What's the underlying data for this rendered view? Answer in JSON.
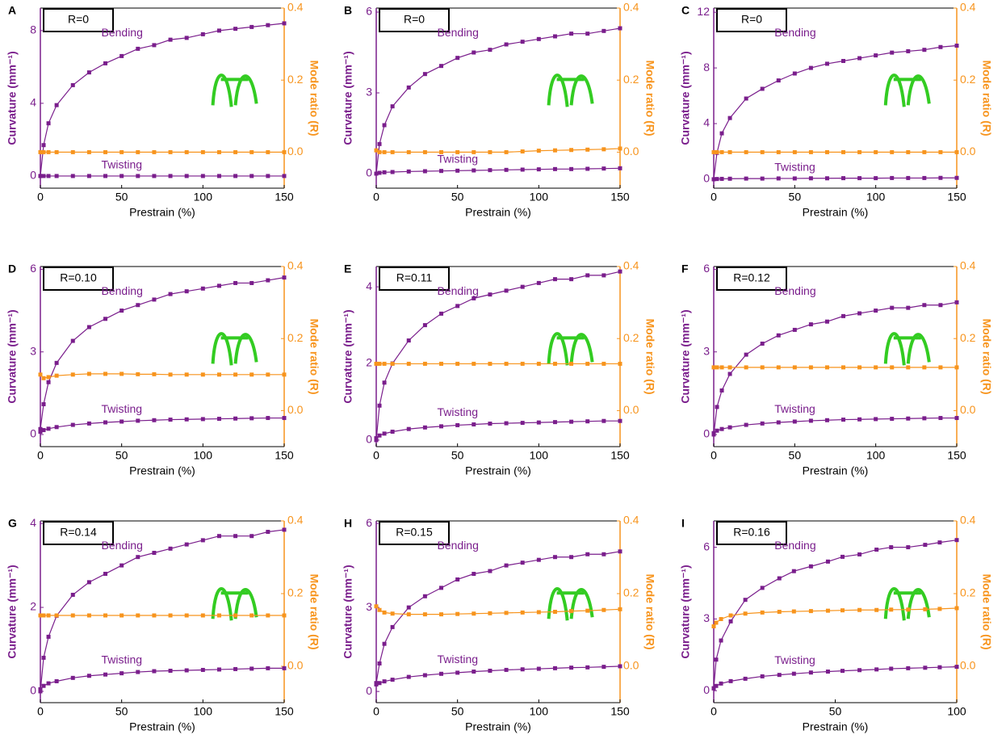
{
  "chart_data": [
    {
      "type": "line",
      "panel": "A",
      "annotation": "R=0",
      "xlabel": "Prestrain (%)",
      "ylabel": "Curvature (mm⁻¹)",
      "y2label": "Mode ratio (R)",
      "x": [
        0,
        2,
        5,
        10,
        20,
        30,
        40,
        50,
        60,
        70,
        80,
        90,
        100,
        110,
        120,
        130,
        140,
        150
      ],
      "xlim": [
        0,
        150
      ],
      "xticks": [
        0,
        50,
        100,
        150
      ],
      "ylim": [
        -0.67,
        9.24
      ],
      "yticks": [
        0,
        4,
        8
      ],
      "y2lim": [
        -0.1,
        0.4
      ],
      "y2ticks": [
        {
          "value": 0,
          "label": "0.0"
        },
        0.2,
        0.4
      ],
      "series": [
        {
          "name": "Bending",
          "color": "#7a1e8c",
          "values": [
            0,
            1.7,
            2.9,
            3.9,
            5.0,
            5.7,
            6.2,
            6.6,
            7.0,
            7.2,
            7.5,
            7.6,
            7.8,
            8.0,
            8.1,
            8.2,
            8.3,
            8.4
          ]
        },
        {
          "name": "Twisting",
          "color": "#7a1e8c",
          "values": [
            0,
            0,
            0,
            0,
            0,
            0,
            0,
            0,
            0,
            0,
            0,
            0,
            0,
            0,
            0,
            0,
            0,
            0
          ]
        },
        {
          "color": "#f7941d",
          "axis": "y2",
          "values": [
            0,
            0,
            0,
            0,
            0,
            0,
            0,
            0,
            0,
            0,
            0,
            0,
            0,
            0,
            0,
            0,
            0,
            0
          ]
        }
      ]
    },
    {
      "type": "line",
      "panel": "B",
      "annotation": "R=0",
      "xlabel": "Prestrain (%)",
      "ylabel": "Curvature (mm⁻¹)",
      "y2label": "Mode ratio (R)",
      "x": [
        0,
        2,
        5,
        10,
        20,
        30,
        40,
        50,
        60,
        70,
        80,
        90,
        100,
        110,
        120,
        130,
        140,
        150
      ],
      "xlim": [
        0,
        150
      ],
      "xticks": [
        0,
        50,
        100,
        150
      ],
      "ylim": [
        -0.54,
        6.15
      ],
      "yticks": [
        0,
        3,
        6
      ],
      "y2lim": [
        -0.1,
        0.4
      ],
      "y2ticks": [
        {
          "value": 0,
          "label": "0.0"
        },
        0.2,
        0.4
      ],
      "series": [
        {
          "name": "Bending",
          "color": "#7a1e8c",
          "values": [
            0,
            1.1,
            1.8,
            2.5,
            3.2,
            3.7,
            4.0,
            4.3,
            4.5,
            4.6,
            4.8,
            4.9,
            5.0,
            5.1,
            5.2,
            5.2,
            5.3,
            5.4
          ]
        },
        {
          "name": "Twisting",
          "color": "#7a1e8c",
          "values": [
            0,
            0.03,
            0.05,
            0.06,
            0.08,
            0.09,
            0.1,
            0.11,
            0.12,
            0.13,
            0.14,
            0.15,
            0.16,
            0.17,
            0.17,
            0.18,
            0.19,
            0.2
          ]
        },
        {
          "color": "#f7941d",
          "axis": "y2",
          "values": [
            0.005,
            0,
            0,
            0,
            0,
            0,
            0,
            0,
            0,
            0,
            0,
            0.002,
            0.004,
            0.005,
            0.006,
            0.007,
            0.008,
            0.01
          ]
        }
      ]
    },
    {
      "type": "line",
      "panel": "C",
      "annotation": "R=0",
      "xlabel": "Prestrain (%)",
      "ylabel": "Curvature (mm⁻¹)",
      "y2label": "Mode ratio (R)",
      "x": [
        0,
        2,
        5,
        10,
        20,
        30,
        40,
        50,
        60,
        70,
        80,
        90,
        100,
        110,
        120,
        130,
        140,
        150
      ],
      "xlim": [
        0,
        150
      ],
      "xticks": [
        0,
        50,
        100,
        150
      ],
      "ylim": [
        -0.64,
        12.3
      ],
      "yticks": [
        0,
        4,
        8,
        12
      ],
      "y2lim": [
        -0.1,
        0.4
      ],
      "y2ticks": [
        {
          "value": 0,
          "label": "0.0"
        },
        0.2,
        0.4
      ],
      "series": [
        {
          "name": "Bending",
          "color": "#7a1e8c",
          "values": [
            0,
            1.9,
            3.3,
            4.4,
            5.8,
            6.5,
            7.1,
            7.6,
            8.0,
            8.3,
            8.5,
            8.7,
            8.9,
            9.1,
            9.2,
            9.3,
            9.5,
            9.6
          ]
        },
        {
          "name": "Twisting",
          "color": "#7a1e8c",
          "values": [
            0,
            0.02,
            0.03,
            0.04,
            0.05,
            0.05,
            0.06,
            0.06,
            0.07,
            0.07,
            0.08,
            0.08,
            0.08,
            0.09,
            0.09,
            0.09,
            0.1,
            0.1
          ]
        },
        {
          "color": "#f7941d",
          "axis": "y2",
          "values": [
            0,
            0,
            0,
            0,
            0,
            0,
            0,
            0,
            0,
            0,
            0,
            0,
            0,
            0,
            0,
            0,
            0,
            0
          ]
        }
      ]
    },
    {
      "type": "line",
      "panel": "D",
      "annotation": "R=0.10",
      "xlabel": "Prestrain (%)",
      "ylabel": "Curvature (mm⁻¹)",
      "y2label": "Mode ratio (R)",
      "x": [
        0,
        2,
        5,
        10,
        20,
        30,
        40,
        50,
        60,
        70,
        80,
        90,
        100,
        110,
        120,
        130,
        140,
        150
      ],
      "xlim": [
        0,
        150
      ],
      "xticks": [
        0,
        50,
        100,
        150
      ],
      "ylim": [
        -0.44,
        6.1
      ],
      "yticks": [
        0,
        3,
        6
      ],
      "y2lim": [
        -0.1,
        0.4
      ],
      "y2ticks": [
        {
          "value": 0,
          "label": "0.0"
        },
        0.2,
        0.4
      ],
      "series": [
        {
          "name": "Bending",
          "color": "#7a1e8c",
          "values": [
            0.2,
            1.1,
            1.9,
            2.6,
            3.4,
            3.9,
            4.2,
            4.5,
            4.7,
            4.9,
            5.1,
            5.2,
            5.3,
            5.4,
            5.5,
            5.5,
            5.6,
            5.7
          ]
        },
        {
          "name": "Twisting",
          "color": "#7a1e8c",
          "values": [
            0.1,
            0.16,
            0.21,
            0.27,
            0.35,
            0.4,
            0.44,
            0.47,
            0.5,
            0.52,
            0.54,
            0.55,
            0.56,
            0.57,
            0.58,
            0.59,
            0.6,
            0.6
          ]
        },
        {
          "color": "#f7941d",
          "axis": "y2",
          "values": [
            0.1,
            0.09,
            0.093,
            0.097,
            0.1,
            0.102,
            0.102,
            0.102,
            0.101,
            0.101,
            0.1,
            0.1,
            0.1,
            0.1,
            0.1,
            0.1,
            0.1,
            0.1
          ]
        }
      ]
    },
    {
      "type": "line",
      "panel": "E",
      "annotation": "R=0.11",
      "xlabel": "Prestrain (%)",
      "ylabel": "Curvature (mm⁻¹)",
      "y2label": "Mode ratio (R)",
      "x": [
        0,
        2,
        5,
        10,
        20,
        30,
        40,
        50,
        60,
        70,
        80,
        90,
        100,
        110,
        120,
        130,
        140,
        150
      ],
      "xlim": [
        0,
        150
      ],
      "xticks": [
        0,
        50,
        100,
        150
      ],
      "ylim": [
        -0.17,
        4.53
      ],
      "yticks": [
        0,
        2,
        4
      ],
      "y2lim": [
        -0.1,
        0.4
      ],
      "y2ticks": [
        {
          "value": 0,
          "label": "0.0"
        },
        0.2,
        0.4
      ],
      "series": [
        {
          "name": "Bending",
          "color": "#7a1e8c",
          "values": [
            0,
            0.9,
            1.5,
            2.0,
            2.6,
            3.0,
            3.3,
            3.5,
            3.7,
            3.8,
            3.9,
            4.0,
            4.1,
            4.2,
            4.2,
            4.3,
            4.3,
            4.4
          ]
        },
        {
          "name": "Twisting",
          "color": "#7a1e8c",
          "values": [
            0.05,
            0.12,
            0.17,
            0.22,
            0.29,
            0.33,
            0.36,
            0.39,
            0.41,
            0.43,
            0.44,
            0.45,
            0.46,
            0.47,
            0.48,
            0.49,
            0.5,
            0.5
          ]
        },
        {
          "color": "#f7941d",
          "axis": "y2",
          "values": [
            0.13,
            0.13,
            0.13,
            0.13,
            0.13,
            0.13,
            0.13,
            0.13,
            0.13,
            0.13,
            0.13,
            0.13,
            0.13,
            0.13,
            0.13,
            0.13,
            0.13,
            0.13
          ]
        }
      ]
    },
    {
      "type": "line",
      "panel": "F",
      "annotation": "R=0.12",
      "xlabel": "Prestrain (%)",
      "ylabel": "Curvature (mm⁻¹)",
      "y2label": "Mode ratio (R)",
      "x": [
        0,
        2,
        5,
        10,
        20,
        30,
        40,
        50,
        60,
        70,
        80,
        90,
        100,
        110,
        120,
        130,
        140,
        150
      ],
      "xlim": [
        0,
        150
      ],
      "xticks": [
        0,
        50,
        100,
        150
      ],
      "ylim": [
        -0.44,
        6.1
      ],
      "yticks": [
        0,
        3,
        6
      ],
      "y2lim": [
        -0.1,
        0.4
      ],
      "y2ticks": [
        {
          "value": 0,
          "label": "0.0"
        },
        0.2,
        0.4
      ],
      "series": [
        {
          "name": "Bending",
          "color": "#7a1e8c",
          "values": [
            0,
            1.0,
            1.6,
            2.2,
            2.9,
            3.3,
            3.6,
            3.8,
            4.0,
            4.1,
            4.3,
            4.4,
            4.5,
            4.6,
            4.6,
            4.7,
            4.7,
            4.8
          ]
        },
        {
          "name": "Twisting",
          "color": "#7a1e8c",
          "values": [
            0.05,
            0.14,
            0.2,
            0.26,
            0.35,
            0.4,
            0.44,
            0.47,
            0.5,
            0.52,
            0.54,
            0.55,
            0.56,
            0.57,
            0.58,
            0.59,
            0.6,
            0.6
          ]
        },
        {
          "color": "#f7941d",
          "axis": "y2",
          "values": [
            0.12,
            0.12,
            0.12,
            0.12,
            0.12,
            0.12,
            0.12,
            0.12,
            0.12,
            0.12,
            0.12,
            0.12,
            0.12,
            0.12,
            0.12,
            0.12,
            0.12,
            0.12
          ]
        }
      ]
    },
    {
      "type": "line",
      "panel": "G",
      "annotation": "R=0.14",
      "xlabel": "Prestrain (%)",
      "ylabel": "Curvature (mm⁻¹)",
      "y2label": "Mode ratio (R)",
      "x": [
        0,
        2,
        5,
        10,
        20,
        30,
        40,
        50,
        60,
        70,
        80,
        90,
        100,
        110,
        120,
        130,
        140,
        150
      ],
      "xlim": [
        0,
        150
      ],
      "xticks": [
        0,
        50,
        100,
        150
      ],
      "ylim": [
        -0.27,
        4.06
      ],
      "yticks": [
        0,
        2,
        4
      ],
      "y2lim": [
        -0.1,
        0.4
      ],
      "y2ticks": [
        {
          "value": 0,
          "label": "0.0"
        },
        0.2,
        0.4
      ],
      "series": [
        {
          "name": "Bending",
          "color": "#7a1e8c",
          "values": [
            0,
            0.8,
            1.3,
            1.8,
            2.3,
            2.6,
            2.8,
            3.0,
            3.2,
            3.3,
            3.4,
            3.5,
            3.6,
            3.7,
            3.7,
            3.7,
            3.8,
            3.85
          ]
        },
        {
          "name": "Twisting",
          "color": "#7a1e8c",
          "values": [
            0.05,
            0.13,
            0.19,
            0.24,
            0.32,
            0.37,
            0.4,
            0.43,
            0.46,
            0.48,
            0.49,
            0.5,
            0.51,
            0.52,
            0.53,
            0.54,
            0.55,
            0.55
          ]
        },
        {
          "color": "#f7941d",
          "axis": "y2",
          "values": [
            0.14,
            0.14,
            0.14,
            0.14,
            0.14,
            0.14,
            0.14,
            0.14,
            0.14,
            0.14,
            0.14,
            0.14,
            0.14,
            0.14,
            0.14,
            0.14,
            0.14,
            0.14
          ]
        }
      ]
    },
    {
      "type": "line",
      "panel": "H",
      "annotation": "R=0.15",
      "xlabel": "Prestrain (%)",
      "ylabel": "Curvature (mm⁻¹)",
      "y2label": "Mode ratio (R)",
      "x": [
        0,
        2,
        5,
        10,
        20,
        30,
        40,
        50,
        60,
        70,
        80,
        90,
        100,
        110,
        120,
        130,
        140,
        150
      ],
      "xlim": [
        0,
        150
      ],
      "xticks": [
        0,
        50,
        100,
        150
      ],
      "ylim": [
        -0.4,
        6.09
      ],
      "yticks": [
        0,
        3,
        6
      ],
      "y2lim": [
        -0.1,
        0.4
      ],
      "y2ticks": [
        {
          "value": 0,
          "label": "0.0"
        },
        0.2,
        0.4
      ],
      "series": [
        {
          "name": "Bending",
          "color": "#7a1e8c",
          "values": [
            0.3,
            1.0,
            1.7,
            2.3,
            3.0,
            3.4,
            3.7,
            4.0,
            4.2,
            4.3,
            4.5,
            4.6,
            4.7,
            4.8,
            4.8,
            4.9,
            4.9,
            5.0
          ]
        },
        {
          "name": "Twisting",
          "color": "#7a1e8c",
          "values": [
            0.25,
            0.3,
            0.36,
            0.42,
            0.52,
            0.58,
            0.63,
            0.67,
            0.71,
            0.74,
            0.77,
            0.79,
            0.81,
            0.83,
            0.85,
            0.86,
            0.88,
            0.9
          ]
        },
        {
          "color": "#f7941d",
          "axis": "y2",
          "values": [
            0.165,
            0.155,
            0.148,
            0.145,
            0.143,
            0.143,
            0.143,
            0.144,
            0.145,
            0.146,
            0.147,
            0.148,
            0.149,
            0.15,
            0.152,
            0.153,
            0.155,
            0.157
          ]
        }
      ]
    },
    {
      "type": "line",
      "panel": "I",
      "annotation": "R=0.16",
      "xlabel": "Prestrain (%)",
      "ylabel": "Curvature (mm⁻¹)",
      "y2label": "Mode ratio (R)",
      "x": [
        0,
        1,
        3,
        7,
        13,
        20,
        27,
        33,
        40,
        47,
        53,
        60,
        67,
        73,
        80,
        87,
        93,
        100
      ],
      "xlim": [
        0,
        100
      ],
      "xticks": [
        0,
        50,
        100
      ],
      "ylim": [
        -0.5,
        7.1
      ],
      "yticks": [
        0,
        3,
        6
      ],
      "y2lim": [
        -0.1,
        0.4
      ],
      "y2ticks": [
        {
          "value": 0,
          "label": "0.0"
        },
        0.2,
        0.4
      ],
      "series": [
        {
          "name": "Bending",
          "color": "#7a1e8c",
          "values": [
            0.1,
            1.3,
            2.1,
            2.9,
            3.8,
            4.3,
            4.7,
            5.0,
            5.2,
            5.4,
            5.6,
            5.7,
            5.9,
            6.0,
            6.0,
            6.1,
            6.2,
            6.3
          ]
        },
        {
          "name": "Twisting",
          "color": "#7a1e8c",
          "values": [
            0.1,
            0.2,
            0.3,
            0.4,
            0.5,
            0.6,
            0.66,
            0.71,
            0.76,
            0.8,
            0.83,
            0.86,
            0.89,
            0.92,
            0.94,
            0.96,
            0.98,
            1.0
          ]
        },
        {
          "color": "#f7941d",
          "axis": "y2",
          "values": [
            0.11,
            0.12,
            0.13,
            0.14,
            0.145,
            0.148,
            0.15,
            0.151,
            0.152,
            0.153,
            0.154,
            0.155,
            0.155,
            0.156,
            0.156,
            0.157,
            0.158,
            0.16
          ]
        }
      ]
    }
  ]
}
